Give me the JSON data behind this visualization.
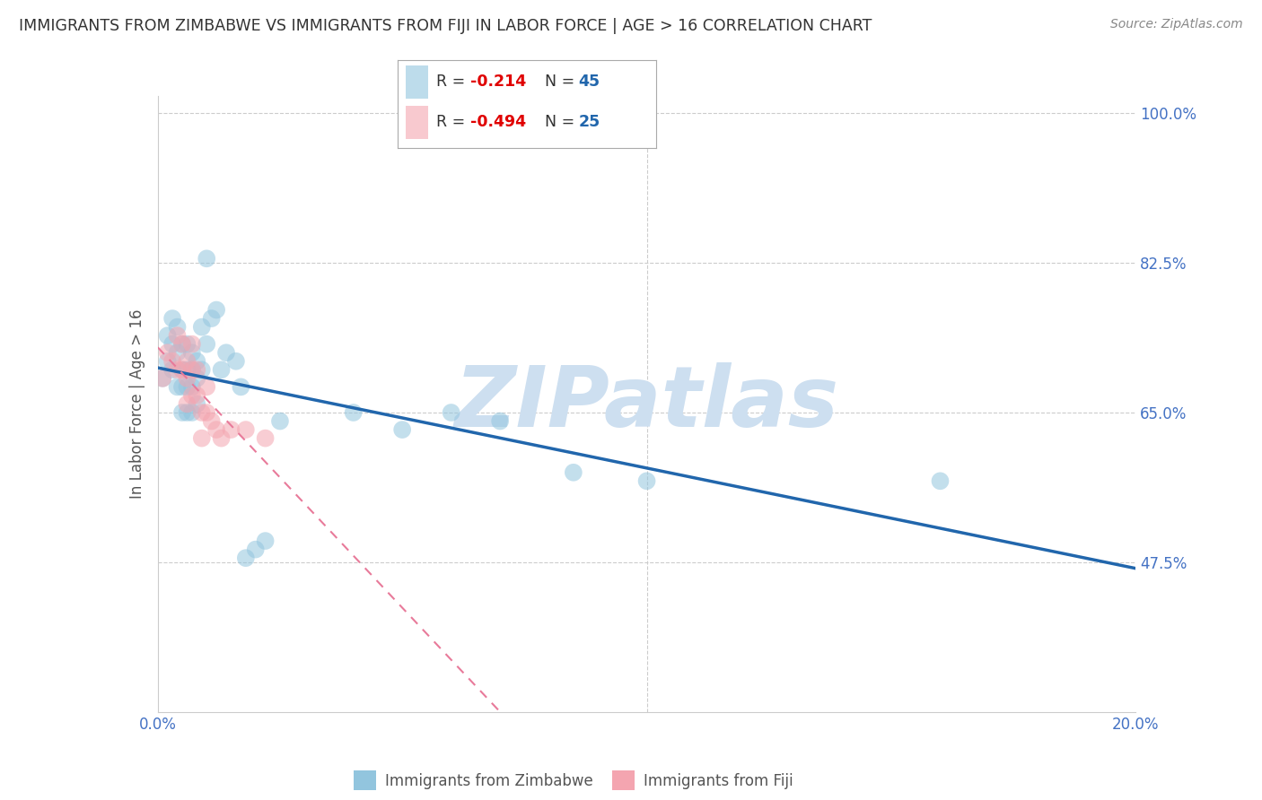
{
  "title": "IMMIGRANTS FROM ZIMBABWE VS IMMIGRANTS FROM FIJI IN LABOR FORCE | AGE > 16 CORRELATION CHART",
  "source": "Source: ZipAtlas.com",
  "ylabel": "In Labor Force | Age > 16",
  "xlim": [
    0.0,
    0.2
  ],
  "ylim": [
    0.3,
    1.02
  ],
  "zimbabwe_color": "#92c5de",
  "fiji_color": "#f4a5b0",
  "zimbabwe_line_color": "#2166ac",
  "fiji_line_color": "#e87a9a",
  "background_color": "#ffffff",
  "grid_color": "#cccccc",
  "title_color": "#333333",
  "axis_label_color": "#555555",
  "tick_color": "#4472c4",
  "watermark": "ZIPatlas",
  "watermark_color": "#cddff0",
  "legend_r_color": "#e00000",
  "legend_n_color": "#2166ac",
  "zimbabwe_x": [
    0.001,
    0.002,
    0.002,
    0.003,
    0.003,
    0.003,
    0.004,
    0.004,
    0.004,
    0.005,
    0.005,
    0.005,
    0.005,
    0.006,
    0.006,
    0.006,
    0.006,
    0.007,
    0.007,
    0.007,
    0.007,
    0.008,
    0.008,
    0.008,
    0.009,
    0.009,
    0.01,
    0.01,
    0.011,
    0.012,
    0.013,
    0.014,
    0.016,
    0.017,
    0.018,
    0.02,
    0.022,
    0.025,
    0.04,
    0.05,
    0.06,
    0.07,
    0.085,
    0.1,
    0.16
  ],
  "zimbabwe_y": [
    0.69,
    0.74,
    0.71,
    0.76,
    0.73,
    0.7,
    0.75,
    0.72,
    0.68,
    0.73,
    0.7,
    0.68,
    0.65,
    0.73,
    0.7,
    0.68,
    0.65,
    0.72,
    0.7,
    0.68,
    0.65,
    0.71,
    0.69,
    0.66,
    0.75,
    0.7,
    0.83,
    0.73,
    0.76,
    0.77,
    0.7,
    0.72,
    0.71,
    0.68,
    0.48,
    0.49,
    0.5,
    0.64,
    0.65,
    0.63,
    0.65,
    0.64,
    0.58,
    0.57,
    0.57
  ],
  "fiji_x": [
    0.001,
    0.002,
    0.003,
    0.004,
    0.004,
    0.005,
    0.005,
    0.006,
    0.006,
    0.006,
    0.007,
    0.007,
    0.007,
    0.008,
    0.008,
    0.009,
    0.009,
    0.01,
    0.01,
    0.011,
    0.012,
    0.013,
    0.015,
    0.018,
    0.022
  ],
  "fiji_y": [
    0.69,
    0.72,
    0.71,
    0.74,
    0.7,
    0.73,
    0.7,
    0.71,
    0.69,
    0.66,
    0.73,
    0.7,
    0.67,
    0.7,
    0.67,
    0.65,
    0.62,
    0.68,
    0.65,
    0.64,
    0.63,
    0.62,
    0.63,
    0.63,
    0.62
  ],
  "ytick_positions": [
    0.475,
    0.65,
    0.825,
    1.0
  ],
  "ytick_labels": [
    "47.5%",
    "65.0%",
    "82.5%",
    "100.0%"
  ],
  "xtick_positions": [
    0.0,
    0.05,
    0.1,
    0.15,
    0.2
  ],
  "xtick_labels": [
    "0.0%",
    "",
    "",
    "",
    "20.0%"
  ]
}
